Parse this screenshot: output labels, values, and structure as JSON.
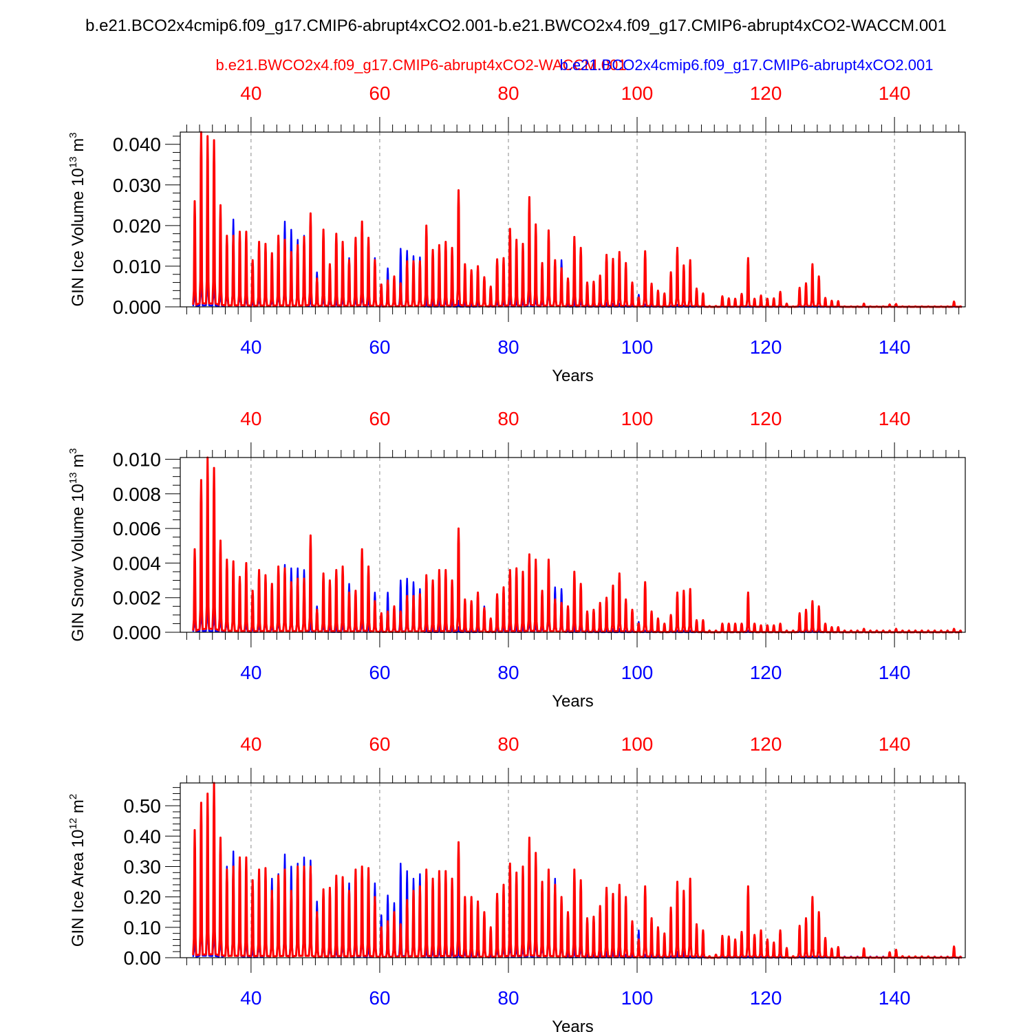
{
  "figure": {
    "title": "b.e21.BCO2x4cmip6.f09_g17.CMIP6-abrupt4xCO2.001-b.e21.BWCO2x4.f09_g17.CMIP6-abrupt4xCO2-WACCM.001",
    "legend_red": "b.e21.BWCO2x4.f09_g17.CMIP6-abrupt4xCO2-WACCM.001",
    "legend_blue": "b.e21.BCO2x4cmip6.f09_g17.CMIP6-abrupt4xCO2.001",
    "colors": {
      "red": "#ff0000",
      "blue": "#0000ff",
      "grid": "#888888",
      "axis": "#000000"
    }
  },
  "chart_data": [
    {
      "type": "line",
      "title": "",
      "xlabel": "Years",
      "ylabel": "GIN Ice Volume 10",
      "ylabel_sup": "13",
      "ylabel_unit": " m",
      "ylabel_unit_sup": "3",
      "xlim": [
        29,
        151
      ],
      "ylim": [
        0,
        0.043
      ],
      "x_ticks": [
        40,
        60,
        80,
        100,
        120,
        140
      ],
      "y_ticks": [
        0.0,
        0.01,
        0.02,
        0.03,
        0.04
      ],
      "y_tick_labels": [
        "0.000",
        "0.010",
        "0.020",
        "0.030",
        "0.040"
      ],
      "y_minor_step": 0.002,
      "series": [
        {
          "name": "b.e21.BWCO2x4.f09_g17.CMIP6-abrupt4xCO2-WACCM.001",
          "color": "#ff0000",
          "start_year": 31,
          "annual_peaks": [
            0.026,
            0.043,
            0.042,
            0.041,
            0.025,
            0.0175,
            0.0175,
            0.0185,
            0.0185,
            0.0115,
            0.016,
            0.0155,
            0.0132,
            0.0175,
            0.0165,
            0.0135,
            0.0152,
            0.0172,
            0.023,
            0.007,
            0.019,
            0.0105,
            0.018,
            0.016,
            0.0115,
            0.017,
            0.021,
            0.017,
            0.0115,
            0.0055,
            0.0065,
            0.0075,
            0.0058,
            0.0112,
            0.0112,
            0.0112,
            0.02,
            0.014,
            0.0152,
            0.016,
            0.0145,
            0.0287,
            0.0105,
            0.009,
            0.01,
            0.0073,
            0.005,
            0.0117,
            0.012,
            0.0192,
            0.0165,
            0.0155,
            0.027,
            0.0203,
            0.0108,
            0.0188,
            0.0115,
            0.0095,
            0.007,
            0.0172,
            0.0145,
            0.006,
            0.0062,
            0.0077,
            0.0128,
            0.0118,
            0.0135,
            0.0108,
            0.006,
            0.0023,
            0.0137,
            0.0057,
            0.004,
            0.0033,
            0.0085,
            0.0145,
            0.0102,
            0.0115,
            0.0045,
            0.0033,
            0.0002,
            0.0002,
            0.0026,
            0.0021,
            0.002,
            0.0032,
            0.012,
            0.002,
            0.0028,
            0.002,
            0.0021,
            0.0037,
            0.0008,
            0.0001,
            0.0047,
            0.0058,
            0.0105,
            0.0075,
            0.0022,
            0.0015,
            0.0014,
            0.0001,
            0.0001,
            0.0001,
            0.0008,
            0.0001,
            0.0001,
            0.0001,
            0.0006,
            0.0007,
            0.0001,
            0.0001,
            0.0001,
            0.0001,
            0.0001,
            0.0001,
            0.0001,
            0.0001,
            0.0013,
            0.0001
          ]
        },
        {
          "name": "b.e21.BCO2x4cmip6.f09_g17.CMIP6-abrupt4xCO2.001",
          "color": "#0000ff",
          "start_year": 31,
          "annual_peaks": [
            0.009,
            0.017,
            0.018,
            0.015,
            0.009,
            0.01,
            0.0215,
            0.009,
            0.006,
            0.003,
            0.006,
            0.01,
            0.005,
            0.009,
            0.021,
            0.019,
            0.0165,
            0.0175,
            0.005,
            0.0085,
            0.006,
            0.004,
            0.003,
            0.005,
            0.012,
            0.005,
            0.008,
            0.003,
            0.012,
            0.002,
            0.0095,
            0.005,
            0.0143,
            0.0138,
            0.0125,
            0.0122,
            0.002,
            0.002,
            0.002,
            0.0045,
            0.002,
            0.0015,
            0.002,
            0.001,
            0.002,
            0.0073,
            0.001,
            0.003,
            0.003,
            0.004,
            0.003,
            0.003,
            0.0085,
            0.005,
            0.004,
            0.012,
            0.0115,
            0.0115,
            0.001,
            0.002,
            0.0035,
            0.001,
            0.001,
            0.001,
            0.001,
            0.0008,
            0.0008,
            0.0003,
            0.0005,
            0.003,
            0.0006,
            0.0005,
            0.0004,
            0.0003,
            0.0002,
            0.0005,
            0.0003,
            0.0002,
            0.0002,
            0.0002,
            0.0002,
            0.0001,
            0.0001,
            0.0001,
            0.0001,
            0.0001,
            0.0001,
            0.0001,
            0.0001,
            0.0001,
            0.0001,
            0.0001,
            0.0001,
            0.0001,
            0.0001,
            0.0001,
            0.0001,
            0.0001,
            0.0001,
            0.0001,
            0.0001,
            0.0001,
            0.0001,
            0.0001,
            0.0001,
            0.0001,
            0.0001,
            0.0001,
            0.0001,
            0.0001,
            0.0001,
            0.0001,
            0.0001,
            0.0001,
            0.0001,
            0.0001,
            0.0001,
            0.0001,
            0.0001,
            0.0001
          ]
        }
      ]
    },
    {
      "type": "line",
      "title": "",
      "xlabel": "Years",
      "ylabel": "GIN Snow Volume 10",
      "ylabel_sup": "13",
      "ylabel_unit": " m",
      "ylabel_unit_sup": "3",
      "xlim": [
        29,
        151
      ],
      "ylim": [
        0,
        0.0101
      ],
      "x_ticks": [
        40,
        60,
        80,
        100,
        120,
        140
      ],
      "y_ticks": [
        0.0,
        0.002,
        0.004,
        0.006,
        0.008,
        0.01
      ],
      "y_tick_labels": [
        "0.000",
        "0.002",
        "0.004",
        "0.006",
        "0.008",
        "0.010"
      ],
      "y_minor_step": 0.0005,
      "series": [
        {
          "name": "b.e21.BWCO2x4.f09_g17.CMIP6-abrupt4xCO2-WACCM.001",
          "color": "#ff0000",
          "start_year": 31,
          "annual_peaks": [
            0.0048,
            0.0088,
            0.0101,
            0.0095,
            0.0053,
            0.0042,
            0.0041,
            0.0032,
            0.004,
            0.0024,
            0.0036,
            0.0033,
            0.0028,
            0.0038,
            0.0037,
            0.0029,
            0.0031,
            0.0031,
            0.0056,
            0.0013,
            0.0034,
            0.003,
            0.0036,
            0.0038,
            0.0023,
            0.0024,
            0.0048,
            0.0038,
            0.0018,
            0.0011,
            0.0012,
            0.0015,
            0.0012,
            0.0021,
            0.0021,
            0.0022,
            0.0033,
            0.003,
            0.0036,
            0.0036,
            0.003,
            0.006,
            0.0019,
            0.0018,
            0.0023,
            0.0014,
            0.0008,
            0.0022,
            0.0026,
            0.0036,
            0.0037,
            0.0035,
            0.0045,
            0.0042,
            0.0024,
            0.0042,
            0.0019,
            0.0017,
            0.0015,
            0.0035,
            0.0028,
            0.0012,
            0.0013,
            0.0017,
            0.002,
            0.0027,
            0.0034,
            0.0019,
            0.0013,
            0.0005,
            0.0029,
            0.0012,
            0.0008,
            0.0005,
            0.001,
            0.0023,
            0.0024,
            0.0025,
            0.0007,
            0.0007,
            0.0001,
            0.0001,
            0.0005,
            0.0005,
            0.0005,
            0.0005,
            0.0023,
            0.0005,
            0.0004,
            0.0004,
            0.0004,
            0.0005,
            0.0001,
            0.0001,
            0.0011,
            0.0013,
            0.0018,
            0.0015,
            0.0005,
            0.0003,
            0.0003,
            0.0001,
            0.0001,
            0.0001,
            0.0002,
            0.0001,
            0.0001,
            0.0001,
            0.0001,
            0.0002,
            0.0001,
            0.0001,
            0.0001,
            0.0001,
            0.0001,
            0.0001,
            0.0001,
            0.0001,
            0.0002,
            0.0001
          ]
        },
        {
          "name": "b.e21.BCO2x4cmip6.f09_g17.CMIP6-abrupt4xCO2.001",
          "color": "#0000ff",
          "start_year": 31,
          "annual_peaks": [
            0.002,
            0.0035,
            0.0036,
            0.003,
            0.002,
            0.002,
            0.0038,
            0.0018,
            0.0012,
            0.0006,
            0.0011,
            0.002,
            0.0009,
            0.0018,
            0.0039,
            0.0037,
            0.0037,
            0.0036,
            0.001,
            0.0015,
            0.0011,
            0.0008,
            0.0006,
            0.001,
            0.0028,
            0.001,
            0.0015,
            0.0006,
            0.0023,
            0.0004,
            0.0023,
            0.001,
            0.003,
            0.0031,
            0.0029,
            0.0025,
            0.0004,
            0.0004,
            0.0004,
            0.001,
            0.0004,
            0.0003,
            0.0004,
            0.0002,
            0.0004,
            0.0015,
            0.0002,
            0.0006,
            0.0006,
            0.0008,
            0.0006,
            0.0006,
            0.0017,
            0.001,
            0.0008,
            0.0026,
            0.0026,
            0.0025,
            0.0002,
            0.0004,
            0.0007,
            0.0002,
            0.0002,
            0.0002,
            0.0002,
            0.0002,
            0.0002,
            0.0001,
            0.0001,
            0.0006,
            0.0001,
            0.0001,
            0.0001,
            0.0001,
            0.0001,
            0.0001,
            0.0001,
            0.0001,
            0.0001,
            0.0001,
            0.0001,
            0.0001,
            0.0001,
            0.0001,
            0.0001,
            0.0001,
            0.0001,
            0.0001,
            0.0001,
            0.0001,
            0.0001,
            0.0001,
            0.0001,
            0.0001,
            0.0001,
            0.0001,
            0.0001,
            0.0001,
            0.0001,
            0.0001,
            0.0001,
            0.0001,
            0.0001,
            0.0001,
            0.0001,
            0.0001,
            0.0001,
            0.0001,
            0.0001,
            0.0001,
            0.0001,
            0.0001,
            0.0001,
            0.0001,
            0.0001,
            0.0001,
            0.0001,
            0.0001,
            0.0001,
            0.0001
          ]
        }
      ]
    },
    {
      "type": "line",
      "title": "",
      "xlabel": "Years",
      "ylabel": "GIN Ice Area 10",
      "ylabel_sup": "12",
      "ylabel_unit": " m",
      "ylabel_unit_sup": "2",
      "xlim": [
        29,
        151
      ],
      "ylim": [
        0,
        0.575
      ],
      "x_ticks": [
        40,
        60,
        80,
        100,
        120,
        140
      ],
      "y_ticks": [
        0.0,
        0.1,
        0.2,
        0.3,
        0.4,
        0.5
      ],
      "y_tick_labels": [
        "0.00",
        "0.10",
        "0.20",
        "0.30",
        "0.40",
        "0.50"
      ],
      "y_minor_step": 0.02,
      "series": [
        {
          "name": "b.e21.BWCO2x4.f09_g17.CMIP6-abrupt4xCO2-WACCM.001",
          "color": "#ff0000",
          "start_year": 31,
          "annual_peaks": [
            0.42,
            0.51,
            0.54,
            0.575,
            0.395,
            0.29,
            0.3,
            0.33,
            0.33,
            0.255,
            0.29,
            0.295,
            0.22,
            0.27,
            0.29,
            0.22,
            0.3,
            0.3,
            0.3,
            0.15,
            0.225,
            0.23,
            0.27,
            0.265,
            0.22,
            0.29,
            0.3,
            0.295,
            0.2,
            0.1,
            0.12,
            0.15,
            0.11,
            0.19,
            0.22,
            0.235,
            0.29,
            0.26,
            0.285,
            0.285,
            0.26,
            0.38,
            0.2,
            0.2,
            0.185,
            0.15,
            0.1,
            0.21,
            0.24,
            0.31,
            0.28,
            0.3,
            0.395,
            0.345,
            0.25,
            0.29,
            0.24,
            0.2,
            0.15,
            0.29,
            0.255,
            0.13,
            0.135,
            0.17,
            0.23,
            0.21,
            0.24,
            0.2,
            0.12,
            0.06,
            0.235,
            0.13,
            0.1,
            0.08,
            0.165,
            0.25,
            0.22,
            0.26,
            0.11,
            0.09,
            0.005,
            0.01,
            0.072,
            0.07,
            0.06,
            0.085,
            0.235,
            0.075,
            0.09,
            0.06,
            0.05,
            0.09,
            0.032,
            0.005,
            0.105,
            0.13,
            0.2,
            0.15,
            0.065,
            0.03,
            0.035,
            0.002,
            0.002,
            0.002,
            0.031,
            0.002,
            0.002,
            0.002,
            0.018,
            0.026,
            0.005,
            0.004,
            0.004,
            0.004,
            0.004,
            0.003,
            0.003,
            0.003,
            0.037,
            0.003
          ]
        },
        {
          "name": "b.e21.BCO2x4cmip6.f09_g17.CMIP6-abrupt4xCO2.001",
          "color": "#0000ff",
          "start_year": 31,
          "annual_peaks": [
            0.14,
            0.32,
            0.305,
            0.26,
            0.18,
            0.3,
            0.35,
            0.24,
            0.15,
            0.06,
            0.14,
            0.22,
            0.26,
            0.275,
            0.34,
            0.3,
            0.31,
            0.33,
            0.32,
            0.185,
            0.14,
            0.1,
            0.07,
            0.13,
            0.245,
            0.15,
            0.2,
            0.08,
            0.245,
            0.14,
            0.205,
            0.18,
            0.31,
            0.285,
            0.26,
            0.275,
            0.06,
            0.06,
            0.06,
            0.1,
            0.05,
            0.04,
            0.05,
            0.03,
            0.05,
            0.14,
            0.02,
            0.08,
            0.09,
            0.11,
            0.09,
            0.09,
            0.2,
            0.15,
            0.12,
            0.23,
            0.26,
            0.13,
            0.02,
            0.05,
            0.1,
            0.01,
            0.01,
            0.02,
            0.02,
            0.03,
            0.035,
            0.01,
            0.01,
            0.09,
            0.01,
            0.01,
            0.01,
            0.005,
            0.005,
            0.02,
            0.02,
            0.005,
            0.005,
            0.005,
            0.004,
            0.004,
            0.004,
            0.004,
            0.004,
            0.004,
            0.004,
            0.004,
            0.004,
            0.004,
            0.004,
            0.004,
            0.004,
            0.004,
            0.004,
            0.004,
            0.004,
            0.004,
            0.004,
            0.004,
            0.004,
            0.004,
            0.004,
            0.004,
            0.004,
            0.004,
            0.004,
            0.004,
            0.004,
            0.004,
            0.004,
            0.004,
            0.004,
            0.004,
            0.004,
            0.004,
            0.004,
            0.004,
            0.004,
            0.004
          ]
        }
      ]
    }
  ]
}
